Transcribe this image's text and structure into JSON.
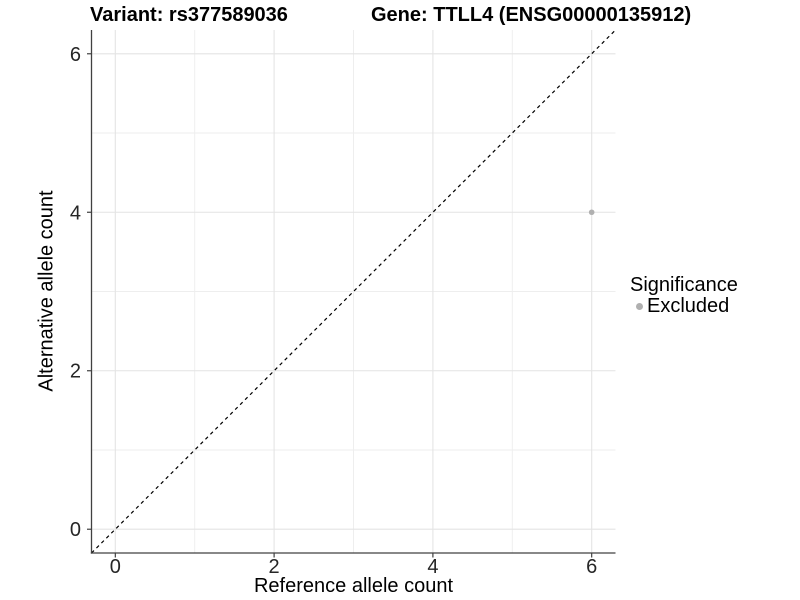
{
  "chart_data": {
    "type": "scatter",
    "title_left": "Variant: rs377589036",
    "title_right": "Gene: TTLL4 (ENSG00000135912)",
    "xlabel": "Reference allele count",
    "ylabel": "Alternative allele count",
    "xlim": [
      -0.3,
      6.3
    ],
    "ylim": [
      -0.3,
      6.3
    ],
    "x_ticks": [
      0,
      2,
      4,
      6
    ],
    "x_minor_ticks": [
      1,
      3,
      5
    ],
    "y_ticks": [
      0,
      2,
      4,
      6
    ],
    "y_minor_ticks": [
      1,
      3,
      5
    ],
    "grid": true,
    "reference_line": {
      "type": "identity y=x",
      "style": "dashed",
      "color": "#000000"
    },
    "series": [
      {
        "name": "Excluded",
        "color": "#b0b0b0",
        "points": [
          {
            "x": 6,
            "y": 4
          }
        ]
      }
    ],
    "legend": {
      "title": "Significance",
      "position": "right",
      "entries": [
        {
          "label": "Excluded",
          "color": "#b0b0b0"
        }
      ]
    },
    "colors": {
      "background": "#ffffff",
      "grid_major": "#e4e4e4",
      "grid_minor": "#eeeeee",
      "axis_line": "#404040",
      "tick_mark": "#404040",
      "tick_label": "#262626"
    }
  }
}
